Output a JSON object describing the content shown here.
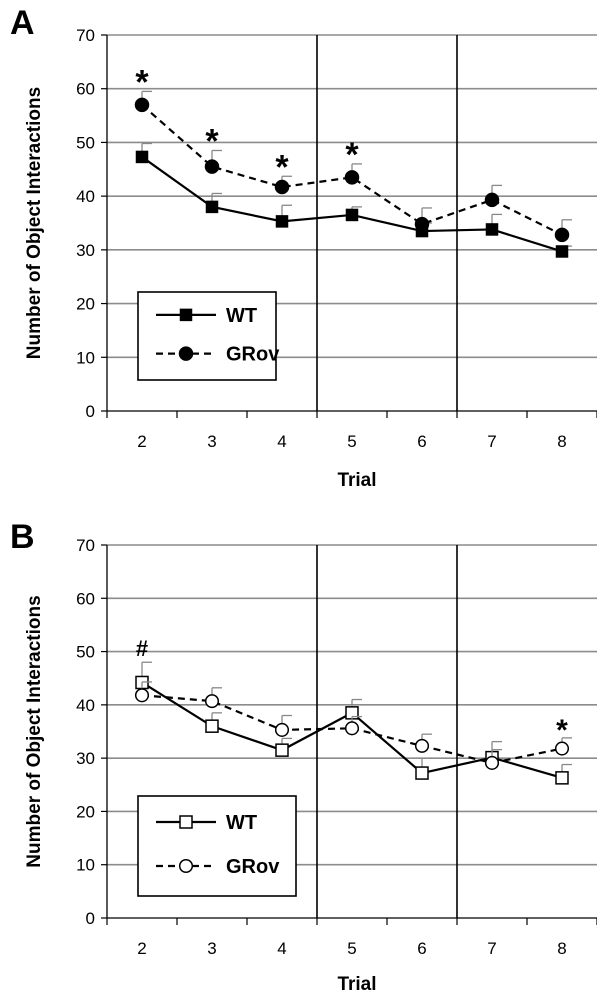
{
  "chart_data": [
    {
      "panel_label": "A",
      "type": "line",
      "xlabel": "Trial",
      "ylabel": "Number of Object Interactions",
      "categories": [
        "2",
        "3",
        "4",
        "5",
        "6",
        "7",
        "8"
      ],
      "ylim": [
        0,
        70
      ],
      "yticks": [
        "0",
        "10",
        "20",
        "30",
        "40",
        "50",
        "60",
        "70"
      ],
      "grid": true,
      "legend_placement": "bottom-left",
      "vertical_separators_after": [
        "4",
        "6"
      ],
      "series": [
        {
          "name": "WT",
          "line_style": "solid",
          "marker": "filled-square",
          "values": [
            47.3,
            38.0,
            35.3,
            36.5,
            33.5,
            33.8,
            29.7
          ],
          "errors": [
            2.5,
            2.5,
            3.0,
            1.5,
            1.5,
            2.8,
            1.0
          ]
        },
        {
          "name": "GRov",
          "line_style": "dashed",
          "marker": "filled-circle",
          "values": [
            57.0,
            45.5,
            41.7,
            43.5,
            34.8,
            39.3,
            32.8
          ],
          "errors": [
            2.5,
            3.0,
            2.0,
            2.5,
            3.0,
            2.7,
            2.8
          ]
        }
      ],
      "annotations": [
        {
          "text": "*",
          "category": "2"
        },
        {
          "text": "*",
          "category": "3"
        },
        {
          "text": "*",
          "category": "4"
        },
        {
          "text": "*",
          "category": "5"
        }
      ]
    },
    {
      "panel_label": "B",
      "type": "line",
      "xlabel": "Trial",
      "ylabel": "Number of Object Interactions",
      "categories": [
        "2",
        "3",
        "4",
        "5",
        "6",
        "7",
        "8"
      ],
      "ylim": [
        0,
        70
      ],
      "yticks": [
        "0",
        "10",
        "20",
        "30",
        "40",
        "50",
        "60",
        "70"
      ],
      "grid": true,
      "legend_placement": "bottom-left",
      "vertical_separators_after": [
        "4",
        "6"
      ],
      "series": [
        {
          "name": "WT",
          "line_style": "solid",
          "marker": "open-square",
          "values": [
            44.2,
            36.0,
            31.5,
            38.5,
            27.2,
            30.1,
            26.3
          ],
          "errors": [
            3.8,
            2.5,
            2.2,
            2.5,
            2.8,
            3.0,
            2.5
          ]
        },
        {
          "name": "GRov",
          "line_style": "dashed",
          "marker": "open-circle",
          "values": [
            41.8,
            40.7,
            35.3,
            35.6,
            32.3,
            29.1,
            31.8
          ],
          "errors": [
            2.5,
            2.5,
            2.7,
            2.2,
            2.2,
            2.5,
            2.0
          ]
        }
      ],
      "annotations": [
        {
          "text": "#",
          "category": "2"
        },
        {
          "text": "*",
          "category": "8"
        }
      ]
    }
  ]
}
